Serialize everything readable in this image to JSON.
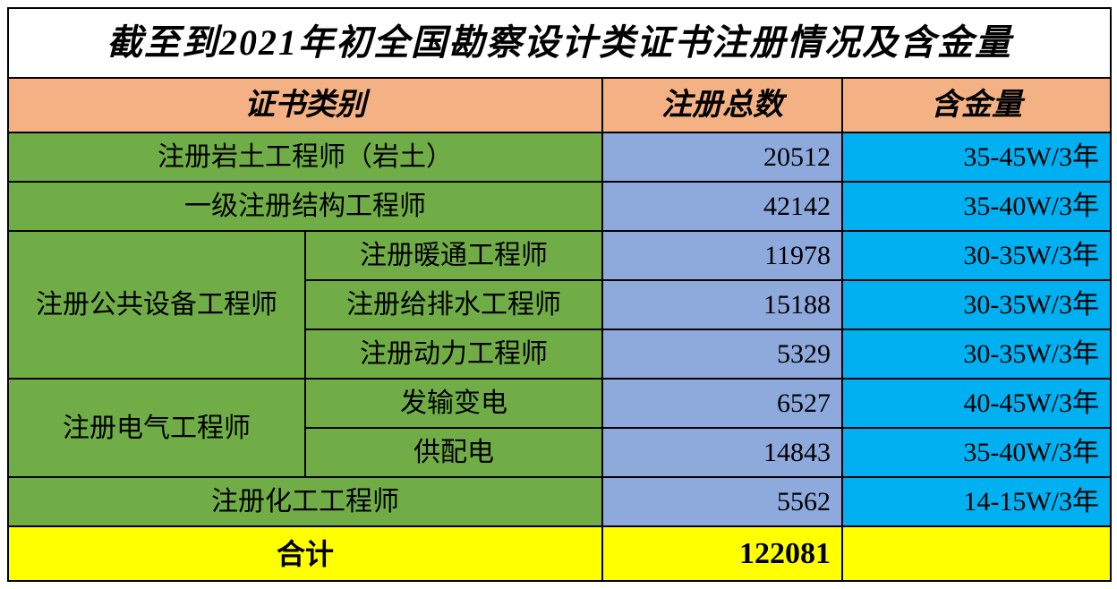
{
  "colors": {
    "title_bg": "#ffffff",
    "header_bg": "#f4b183",
    "category_bg": "#70ad47",
    "count_bg": "#8ea9db",
    "value_bg": "#00b0f0",
    "total_bg": "#ffff00",
    "border": "#000000",
    "text": "#000000"
  },
  "table": {
    "type": "table",
    "title": "截至到2021年初全国勘察设计类证书注册情况及含金量",
    "headers": {
      "category": "证书类别",
      "count": "注册总数",
      "value": "含金量"
    },
    "rows": [
      {
        "cat_span": "注册岩土工程师（岩土）",
        "sub": null,
        "count": "20512",
        "value": "35-45W/3年"
      },
      {
        "cat_span": "一级注册结构工程师",
        "sub": null,
        "count": "42142",
        "value": "35-40W/3年"
      },
      {
        "group": "注册公共设备工程师",
        "sub": "注册暖通工程师",
        "count": "11978",
        "value": "30-35W/3年",
        "group_rowspan": 3
      },
      {
        "group": null,
        "sub": "注册给排水工程师",
        "count": "15188",
        "value": "30-35W/3年"
      },
      {
        "group": null,
        "sub": "注册动力工程师",
        "count": "5329",
        "value": "30-35W/3年"
      },
      {
        "group": "注册电气工程师",
        "sub": "发输变电",
        "count": "6527",
        "value": "40-45W/3年",
        "group_rowspan": 2
      },
      {
        "group": null,
        "sub": "供配电",
        "count": "14843",
        "value": "35-40W/3年"
      },
      {
        "cat_span": "注册化工工程师",
        "sub": null,
        "count": "5562",
        "value": "14-15W/3年"
      }
    ],
    "total": {
      "label": "合计",
      "count": "122081",
      "value": ""
    }
  }
}
